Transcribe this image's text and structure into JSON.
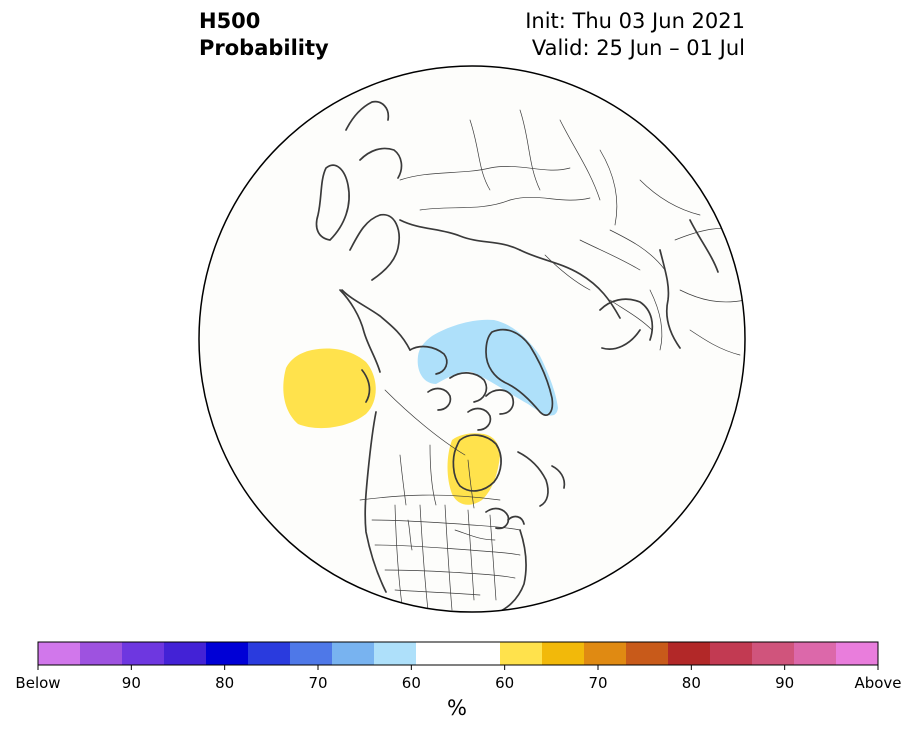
{
  "header": {
    "field": "H500",
    "product": "Probability",
    "init": "Init: Thu 03 Jun 2021",
    "valid": "Valid: 25 Jun – 01 Jul"
  },
  "map": {
    "projection": "north-polar-stereographic",
    "features": [
      "coastlines",
      "country-borders",
      "us-state-borders",
      "canada-province-borders"
    ],
    "anomalies": [
      {
        "name": "north-pacific-above-normal",
        "category": "Above",
        "color": "#ffe24c"
      },
      {
        "name": "hudson-bay-above-normal",
        "category": "Above",
        "color": "#ffe24c"
      },
      {
        "name": "greenland-below-normal",
        "category": "Below",
        "color": "#aee0fa"
      }
    ]
  },
  "colorbar": {
    "colors": [
      "#d177eb",
      "#9e52e0",
      "#6e37e0",
      "#4322d6",
      "#0000d6",
      "#2a3bde",
      "#4e78e8",
      "#78b3f0",
      "#aee0fa",
      "#ffffff",
      "#ffffff",
      "#ffe24c",
      "#f2b90a",
      "#e08a12",
      "#c85a1a",
      "#b22828",
      "#c23a52",
      "#d0547c",
      "#dc68aa",
      "#e97ddc"
    ],
    "tick_labels": [
      "Below",
      "90",
      "80",
      "70",
      "60",
      "60",
      "70",
      "80",
      "90",
      "Above"
    ],
    "units": "%"
  }
}
